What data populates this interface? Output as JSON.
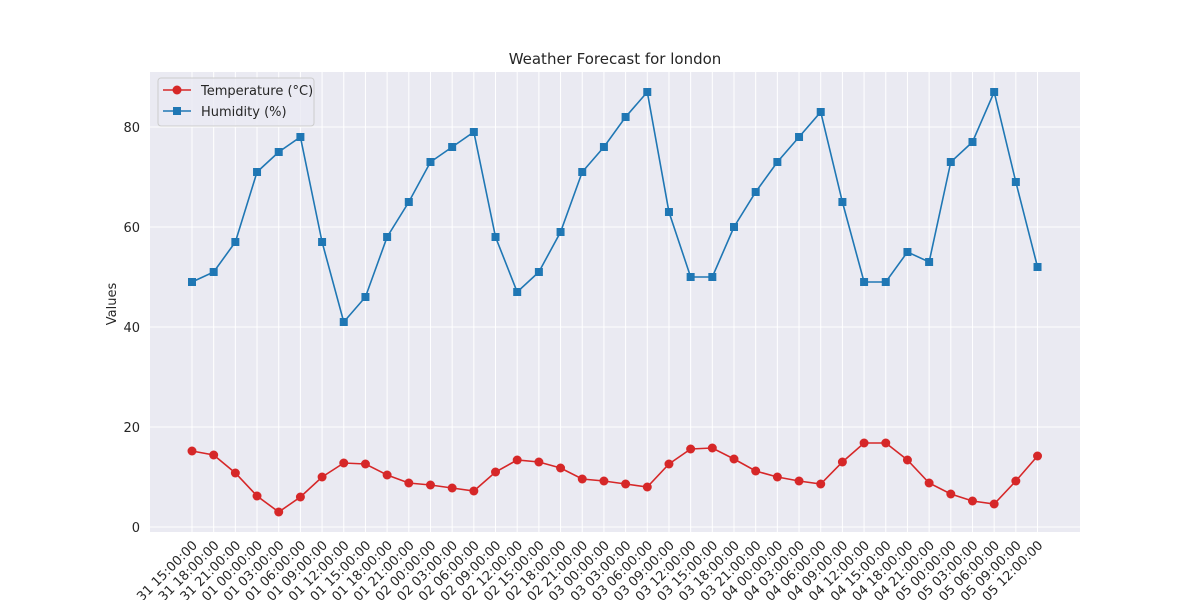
{
  "chart_data": {
    "type": "line",
    "title": "Weather Forecast for london",
    "xlabel": "",
    "ylabel": "Values",
    "ylim": [
      -1,
      91
    ],
    "yticks": [
      0,
      20,
      40,
      60,
      80
    ],
    "grid": true,
    "legend_position": "top-left",
    "x": [
      "31 15:00:00",
      "31 18:00:00",
      "31 21:00:00",
      "01 00:00:00",
      "01 03:00:00",
      "01 06:00:00",
      "01 09:00:00",
      "01 12:00:00",
      "01 15:00:00",
      "01 18:00:00",
      "01 21:00:00",
      "02 00:00:00",
      "02 03:00:00",
      "02 06:00:00",
      "02 09:00:00",
      "02 12:00:00",
      "02 15:00:00",
      "02 18:00:00",
      "02 21:00:00",
      "03 00:00:00",
      "03 03:00:00",
      "03 06:00:00",
      "03 09:00:00",
      "03 12:00:00",
      "03 15:00:00",
      "03 18:00:00",
      "03 21:00:00",
      "04 00:00:00",
      "04 03:00:00",
      "04 06:00:00",
      "04 09:00:00",
      "04 12:00:00",
      "04 15:00:00",
      "04 18:00:00",
      "04 21:00:00",
      "05 00:00:00",
      "05 03:00:00",
      "05 06:00:00",
      "05 09:00:00",
      "05 12:00:00"
    ],
    "series": [
      {
        "name": "Temperature (°C)",
        "color": "#d62728",
        "marker": "circle",
        "values": [
          15.2,
          14.4,
          10.8,
          6.2,
          3.0,
          6.0,
          10.0,
          12.8,
          12.6,
          10.4,
          8.8,
          8.4,
          7.8,
          7.2,
          11.0,
          13.4,
          13.0,
          11.8,
          9.6,
          9.2,
          8.6,
          8.0,
          12.6,
          15.6,
          15.8,
          13.6,
          11.2,
          10.0,
          9.2,
          8.6,
          13.0,
          16.8,
          16.8,
          13.4,
          8.8,
          6.6,
          5.2,
          4.6,
          9.2,
          14.2
        ]
      },
      {
        "name": "Humidity (%)",
        "color": "#1f77b4",
        "marker": "square",
        "values": [
          49,
          51,
          57,
          71,
          75,
          78,
          57,
          41,
          46,
          58,
          65,
          73,
          76,
          79,
          58,
          47,
          51,
          59,
          71,
          76,
          82,
          87,
          63,
          50,
          50,
          60,
          67,
          73,
          78,
          83,
          65,
          49,
          49,
          55,
          53,
          73,
          77,
          87,
          69,
          52
        ]
      }
    ]
  }
}
